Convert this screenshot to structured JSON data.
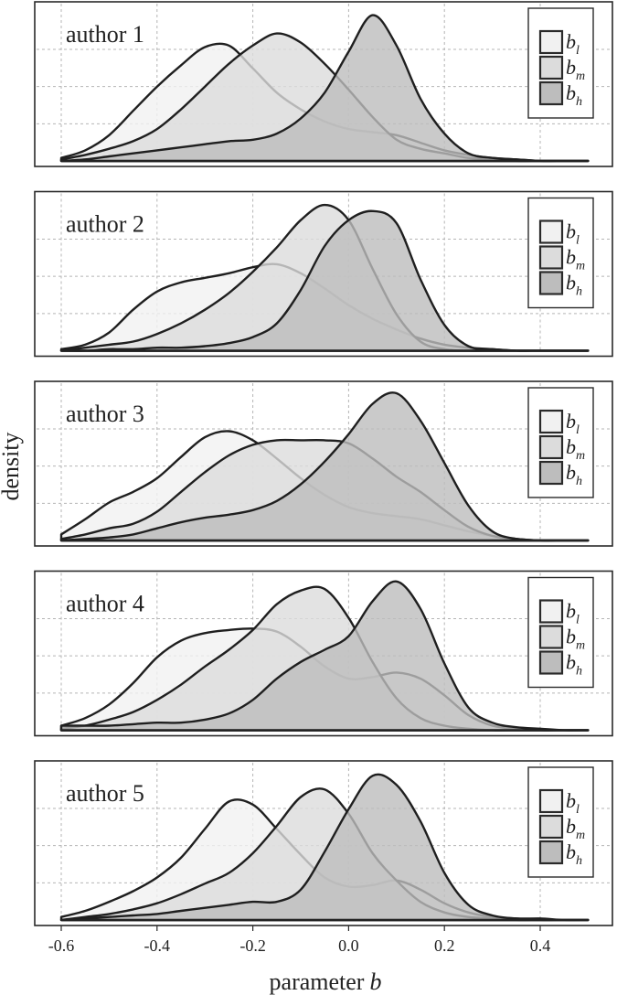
{
  "chart_data": {
    "type": "area",
    "xlabel": "parameter",
    "xlabel_var": "b",
    "ylabel": "density",
    "xlim": [
      -0.6,
      0.5
    ],
    "x_ticks": [
      -0.6,
      -0.4,
      -0.2,
      0.0,
      0.2,
      0.4
    ],
    "x_tick_labels": [
      "-0.6",
      "-0.4",
      "-0.2",
      "0.0",
      "0.2",
      "0.4"
    ],
    "grid": true,
    "legend_position": "top-right",
    "series_styles": [
      {
        "key": "bl",
        "symbol": "b",
        "subscript": "l",
        "fill": "#f1f1f1"
      },
      {
        "key": "bm",
        "symbol": "b",
        "subscript": "m",
        "fill": "#dcdcdc"
      },
      {
        "key": "bh",
        "symbol": "b",
        "subscript": "h",
        "fill": "#bdbdbd"
      }
    ],
    "x": [
      -0.6,
      -0.55,
      -0.5,
      -0.45,
      -0.4,
      -0.35,
      -0.3,
      -0.25,
      -0.2,
      -0.15,
      -0.1,
      -0.05,
      0.0,
      0.05,
      0.1,
      0.15,
      0.2,
      0.25,
      0.3,
      0.35,
      0.4,
      0.45,
      0.5
    ],
    "panels": [
      {
        "label": "author 1",
        "series": [
          {
            "key": "bl",
            "values": [
              0.02,
              0.07,
              0.17,
              0.33,
              0.49,
              0.63,
              0.75,
              0.76,
              0.61,
              0.45,
              0.34,
              0.26,
              0.21,
              0.19,
              0.17,
              0.12,
              0.07,
              0.04,
              0.02,
              0.01,
              0.0,
              0.0,
              0.0
            ]
          },
          {
            "key": "bm",
            "values": [
              0.01,
              0.04,
              0.08,
              0.13,
              0.21,
              0.34,
              0.49,
              0.64,
              0.76,
              0.84,
              0.78,
              0.64,
              0.47,
              0.29,
              0.14,
              0.08,
              0.05,
              0.02,
              0.01,
              0.0,
              0.0,
              0.0,
              0.0
            ]
          },
          {
            "key": "bh",
            "values": [
              0.0,
              0.01,
              0.03,
              0.05,
              0.07,
              0.09,
              0.11,
              0.13,
              0.14,
              0.18,
              0.28,
              0.45,
              0.72,
              0.96,
              0.76,
              0.41,
              0.18,
              0.05,
              0.02,
              0.01,
              0.0,
              0.0,
              0.0
            ]
          }
        ]
      },
      {
        "label": "author 2",
        "series": [
          {
            "key": "bl",
            "values": [
              0.01,
              0.04,
              0.12,
              0.27,
              0.39,
              0.45,
              0.48,
              0.51,
              0.55,
              0.57,
              0.51,
              0.41,
              0.3,
              0.21,
              0.14,
              0.08,
              0.04,
              0.02,
              0.01,
              0.0,
              0.0,
              0.0,
              0.0
            ]
          },
          {
            "key": "bm",
            "values": [
              0.0,
              0.02,
              0.04,
              0.06,
              0.11,
              0.18,
              0.27,
              0.38,
              0.52,
              0.68,
              0.86,
              0.96,
              0.86,
              0.54,
              0.24,
              0.06,
              0.01,
              0.0,
              0.0,
              0.0,
              0.0,
              0.0,
              0.0
            ]
          },
          {
            "key": "bh",
            "values": [
              0.0,
              0.0,
              0.01,
              0.01,
              0.02,
              0.02,
              0.03,
              0.05,
              0.09,
              0.18,
              0.4,
              0.69,
              0.86,
              0.92,
              0.84,
              0.47,
              0.17,
              0.03,
              0.01,
              0.0,
              0.0,
              0.0,
              0.0
            ]
          }
        ]
      },
      {
        "label": "author 3",
        "series": [
          {
            "key": "bl",
            "values": [
              0.04,
              0.14,
              0.25,
              0.32,
              0.41,
              0.55,
              0.68,
              0.72,
              0.66,
              0.54,
              0.41,
              0.3,
              0.22,
              0.18,
              0.16,
              0.14,
              0.1,
              0.06,
              0.03,
              0.01,
              0.0,
              0.0,
              0.0
            ]
          },
          {
            "key": "bm",
            "values": [
              0.01,
              0.04,
              0.08,
              0.11,
              0.19,
              0.32,
              0.45,
              0.56,
              0.63,
              0.66,
              0.66,
              0.66,
              0.64,
              0.54,
              0.42,
              0.32,
              0.2,
              0.09,
              0.03,
              0.01,
              0.0,
              0.0,
              0.0
            ]
          },
          {
            "key": "bh",
            "values": [
              0.0,
              0.01,
              0.02,
              0.04,
              0.08,
              0.12,
              0.15,
              0.17,
              0.2,
              0.26,
              0.37,
              0.52,
              0.7,
              0.9,
              0.97,
              0.79,
              0.51,
              0.23,
              0.06,
              0.01,
              0.0,
              0.0,
              0.0
            ]
          }
        ]
      },
      {
        "label": "author 4",
        "series": [
          {
            "key": "bl",
            "values": [
              0.03,
              0.08,
              0.17,
              0.31,
              0.48,
              0.59,
              0.64,
              0.66,
              0.67,
              0.65,
              0.55,
              0.42,
              0.34,
              0.35,
              0.38,
              0.34,
              0.23,
              0.1,
              0.03,
              0.01,
              0.0,
              0.0,
              0.0
            ]
          },
          {
            "key": "bm",
            "values": [
              0.01,
              0.03,
              0.07,
              0.12,
              0.2,
              0.3,
              0.42,
              0.53,
              0.66,
              0.83,
              0.92,
              0.93,
              0.74,
              0.45,
              0.21,
              0.08,
              0.03,
              0.01,
              0.0,
              0.0,
              0.0,
              0.0,
              0.0
            ]
          },
          {
            "key": "bh",
            "values": [
              0.03,
              0.03,
              0.03,
              0.04,
              0.05,
              0.05,
              0.07,
              0.11,
              0.2,
              0.34,
              0.45,
              0.53,
              0.62,
              0.85,
              0.98,
              0.8,
              0.44,
              0.15,
              0.05,
              0.02,
              0.01,
              0.0,
              0.0
            ]
          }
        ]
      },
      {
        "label": "author 5",
        "series": [
          {
            "key": "bl",
            "values": [
              0.02,
              0.06,
              0.12,
              0.19,
              0.28,
              0.41,
              0.6,
              0.78,
              0.76,
              0.6,
              0.43,
              0.28,
              0.22,
              0.23,
              0.26,
              0.2,
              0.11,
              0.05,
              0.02,
              0.01,
              0.0,
              0.0,
              0.0
            ]
          },
          {
            "key": "bm",
            "values": [
              0.0,
              0.02,
              0.04,
              0.07,
              0.11,
              0.17,
              0.24,
              0.31,
              0.44,
              0.62,
              0.81,
              0.86,
              0.7,
              0.44,
              0.26,
              0.12,
              0.05,
              0.02,
              0.01,
              0.0,
              0.0,
              0.0,
              0.0
            ]
          },
          {
            "key": "bh",
            "values": [
              0.0,
              0.01,
              0.02,
              0.03,
              0.04,
              0.06,
              0.08,
              0.1,
              0.12,
              0.12,
              0.2,
              0.45,
              0.73,
              0.95,
              0.89,
              0.65,
              0.31,
              0.1,
              0.03,
              0.01,
              0.01,
              0.0,
              0.0
            ]
          }
        ]
      }
    ]
  }
}
